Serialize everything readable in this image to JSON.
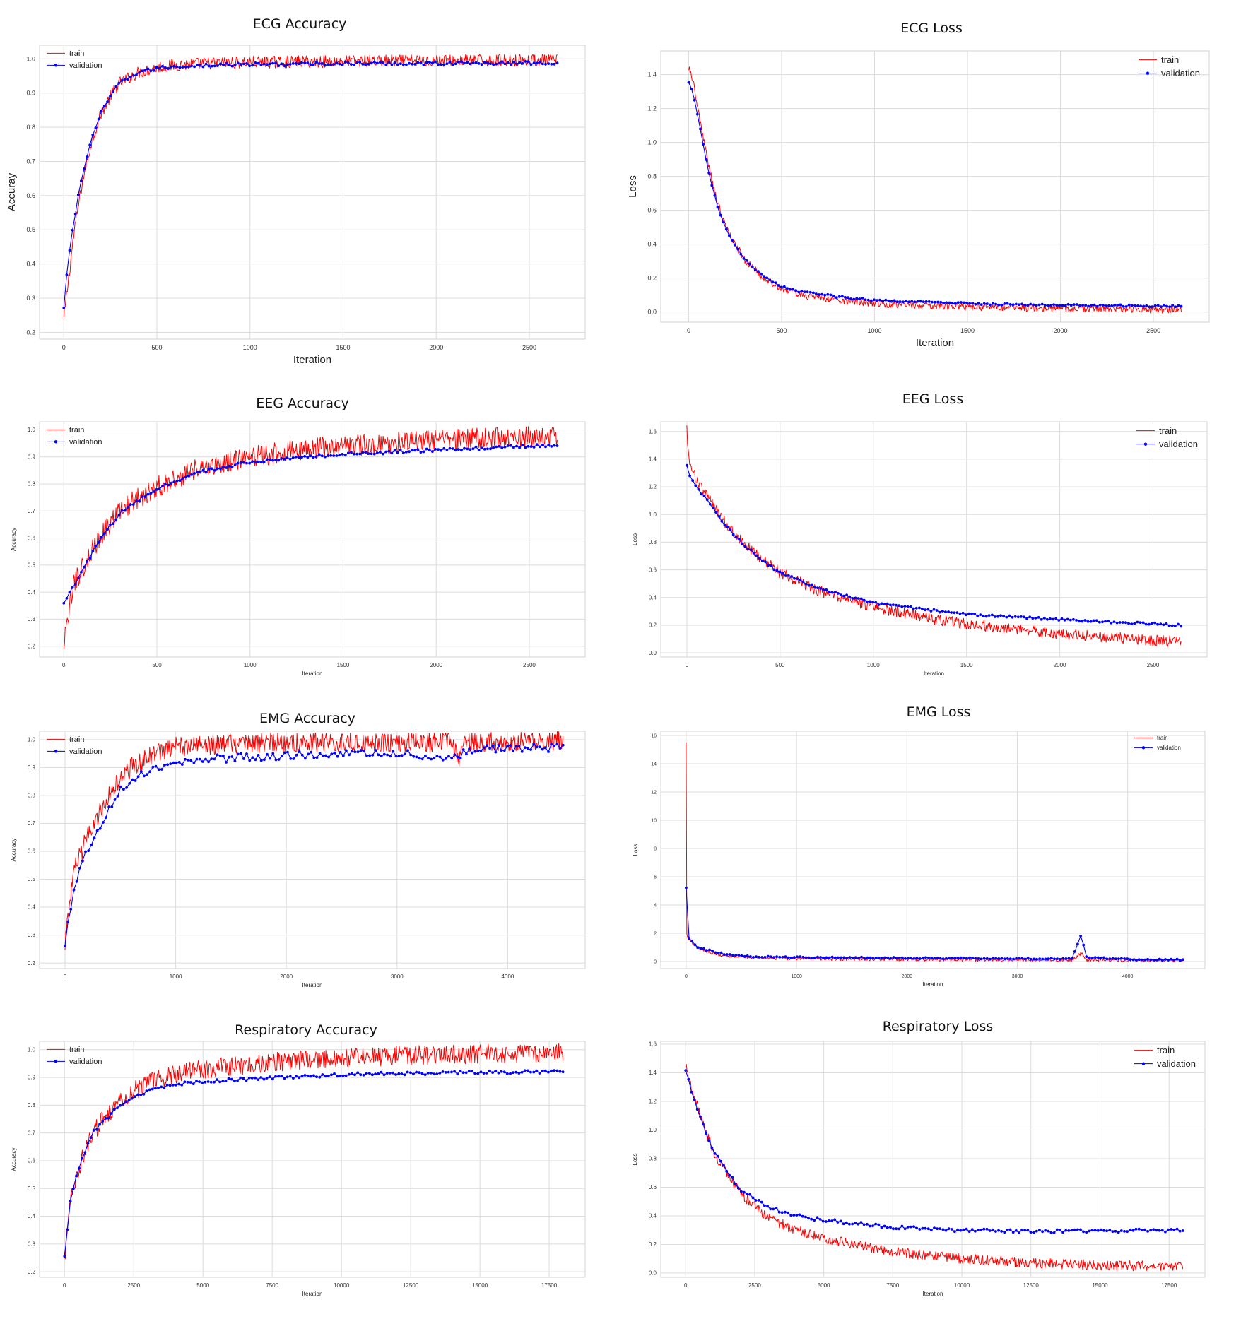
{
  "colors": {
    "train": "#ff0000",
    "validation": "#0000ff",
    "grid": "#dcdcdc",
    "frame": "#d3d3d3",
    "tick_text": "#333333",
    "title_text": "#111111"
  },
  "chart_data": [
    {
      "id": "ecg-accuracy",
      "type": "line",
      "title": "ECG Accuracy",
      "xlabel": "Iteration",
      "ylabel": "Accuray",
      "xlim": [
        -130,
        2800
      ],
      "ylim": [
        0.18,
        1.04
      ],
      "xticks": [
        0,
        500,
        1000,
        1500,
        2000,
        2500
      ],
      "xtick_labels": [
        "0",
        "500",
        "1000",
        "1500",
        "2000",
        "2500"
      ],
      "yticks": [
        0.2,
        0.3,
        0.4,
        0.5,
        0.6,
        0.7,
        0.8,
        0.9,
        1.0
      ],
      "ytick_labels": [
        "0.2",
        "0.3",
        "0.4",
        "0.5",
        "0.6",
        "0.7",
        "0.8",
        "0.9",
        "1.0"
      ],
      "grid": true,
      "legend_position": "top-left",
      "x_max": 2650,
      "series": [
        {
          "name": "train",
          "x": [
            0,
            25,
            50,
            75,
            100,
            150,
            200,
            250,
            300,
            400,
            500,
            600,
            800,
            1000,
            1500,
            2000,
            2500,
            2650
          ],
          "values": [
            0.24,
            0.35,
            0.47,
            0.56,
            0.64,
            0.76,
            0.84,
            0.89,
            0.93,
            0.96,
            0.975,
            0.982,
            0.988,
            0.99,
            0.993,
            0.995,
            0.996,
            0.996
          ],
          "noise": 0.018
        },
        {
          "name": "validation",
          "x": [
            0,
            25,
            50,
            75,
            100,
            150,
            200,
            250,
            300,
            400,
            500,
            600,
            800,
            1000,
            1500,
            2000,
            2500,
            2650
          ],
          "values": [
            0.27,
            0.42,
            0.51,
            0.59,
            0.66,
            0.77,
            0.84,
            0.89,
            0.93,
            0.96,
            0.972,
            0.978,
            0.982,
            0.984,
            0.986,
            0.987,
            0.988,
            0.988
          ],
          "noise": 0.005
        }
      ]
    },
    {
      "id": "ecg-loss",
      "type": "line",
      "title": "ECG Loss",
      "xlabel": "Iteration",
      "ylabel": "Loss",
      "xlim": [
        -150,
        2800
      ],
      "ylim": [
        -0.06,
        1.54
      ],
      "xticks": [
        0,
        500,
        1000,
        1500,
        2000,
        2500
      ],
      "xtick_labels": [
        "0",
        "500",
        "1000",
        "1500",
        "2000",
        "2500"
      ],
      "yticks": [
        0.0,
        0.2,
        0.4,
        0.6,
        0.8,
        1.0,
        1.2,
        1.4
      ],
      "ytick_labels": [
        "0.0",
        "0.2",
        "0.4",
        "0.6",
        "0.8",
        "1.0",
        "1.2",
        "1.4"
      ],
      "grid": true,
      "legend_position": "top-right",
      "x_max": 2650,
      "series": [
        {
          "name": "train",
          "x": [
            0,
            20,
            50,
            100,
            150,
            200,
            250,
            300,
            400,
            500,
            600,
            800,
            1000,
            1500,
            2000,
            2500,
            2650
          ],
          "values": [
            1.45,
            1.38,
            1.2,
            0.9,
            0.66,
            0.5,
            0.4,
            0.31,
            0.2,
            0.14,
            0.1,
            0.07,
            0.05,
            0.03,
            0.02,
            0.015,
            0.015
          ],
          "noise": 0.022
        },
        {
          "name": "validation",
          "x": [
            0,
            20,
            50,
            100,
            150,
            200,
            250,
            300,
            400,
            500,
            600,
            800,
            1000,
            1500,
            2000,
            2500,
            2650
          ],
          "values": [
            1.36,
            1.3,
            1.15,
            0.86,
            0.64,
            0.49,
            0.39,
            0.31,
            0.21,
            0.15,
            0.12,
            0.09,
            0.07,
            0.05,
            0.04,
            0.035,
            0.035
          ],
          "noise": 0.006
        }
      ]
    },
    {
      "id": "eeg-accuracy",
      "type": "line",
      "title": "EEG Accuracy",
      "xlabel": "Iteration",
      "ylabel": "Accuracy",
      "xlim": [
        -130,
        2800
      ],
      "ylim": [
        0.16,
        1.03
      ],
      "xticks": [
        0,
        500,
        1000,
        1500,
        2000,
        2500
      ],
      "xtick_labels": [
        "0",
        "500",
        "1000",
        "1500",
        "2000",
        "2500"
      ],
      "yticks": [
        0.2,
        0.3,
        0.4,
        0.5,
        0.6,
        0.7,
        0.8,
        0.9,
        1.0
      ],
      "ytick_labels": [
        "0.2",
        "0.3",
        "0.4",
        "0.5",
        "0.6",
        "0.7",
        "0.8",
        "0.9",
        "1.0"
      ],
      "grid": true,
      "legend_position": "top-left",
      "x_max": 2650,
      "series": [
        {
          "name": "train",
          "x": [
            0,
            50,
            100,
            200,
            300,
            400,
            500,
            700,
            1000,
            1300,
            1500,
            2000,
            2500,
            2650
          ],
          "values": [
            0.2,
            0.42,
            0.49,
            0.61,
            0.7,
            0.75,
            0.79,
            0.85,
            0.9,
            0.93,
            0.94,
            0.96,
            0.975,
            0.975
          ],
          "noise": 0.04
        },
        {
          "name": "validation",
          "x": [
            0,
            50,
            100,
            200,
            300,
            400,
            500,
            700,
            1000,
            1300,
            1500,
            2000,
            2500,
            2650
          ],
          "values": [
            0.36,
            0.42,
            0.48,
            0.6,
            0.69,
            0.74,
            0.78,
            0.84,
            0.88,
            0.9,
            0.91,
            0.925,
            0.94,
            0.945
          ],
          "noise": 0.006
        }
      ]
    },
    {
      "id": "eeg-loss",
      "type": "line",
      "title": "EEG Loss",
      "xlabel": "Iteration",
      "ylabel": "Loss",
      "xlim": [
        -140,
        2790
      ],
      "ylim": [
        -0.03,
        1.67
      ],
      "xticks": [
        0,
        500,
        1000,
        1500,
        2000,
        2500
      ],
      "xtick_labels": [
        "0",
        "500",
        "1000",
        "1500",
        "2000",
        "2500"
      ],
      "yticks": [
        0.0,
        0.2,
        0.4,
        0.6,
        0.8,
        1.0,
        1.2,
        1.4,
        1.6
      ],
      "ytick_labels": [
        "0.0",
        "0.2",
        "0.4",
        "0.6",
        "0.8",
        "1.0",
        "1.2",
        "1.4",
        "1.6"
      ],
      "grid": true,
      "legend_position": "top-right",
      "x_max": 2650,
      "series": [
        {
          "name": "train",
          "x": [
            0,
            10,
            50,
            100,
            200,
            300,
            400,
            500,
            700,
            1000,
            1300,
            1500,
            2000,
            2500,
            2650
          ],
          "values": [
            1.62,
            1.4,
            1.25,
            1.15,
            0.95,
            0.8,
            0.68,
            0.58,
            0.45,
            0.33,
            0.25,
            0.21,
            0.14,
            0.09,
            0.08
          ],
          "noise": 0.04
        },
        {
          "name": "validation",
          "x": [
            0,
            10,
            50,
            100,
            200,
            300,
            400,
            500,
            700,
            1000,
            1300,
            1500,
            2000,
            2500,
            2650
          ],
          "values": [
            1.35,
            1.3,
            1.2,
            1.12,
            0.93,
            0.79,
            0.67,
            0.58,
            0.47,
            0.36,
            0.31,
            0.28,
            0.24,
            0.21,
            0.2
          ],
          "noise": 0.008
        }
      ]
    },
    {
      "id": "emg-accuracy",
      "type": "line",
      "title": "EMG Accuracy",
      "xlabel": "Iteration",
      "ylabel": "Accuracy",
      "xlim": [
        -230,
        4700
      ],
      "ylim": [
        0.18,
        1.03
      ],
      "xticks": [
        0,
        1000,
        2000,
        3000,
        4000
      ],
      "xtick_labels": [
        "0",
        "1000",
        "2000",
        "3000",
        "4000"
      ],
      "yticks": [
        0.2,
        0.3,
        0.4,
        0.5,
        0.6,
        0.7,
        0.8,
        0.9,
        1.0
      ],
      "ytick_labels": [
        "0.2",
        "0.3",
        "0.4",
        "0.5",
        "0.6",
        "0.7",
        "0.8",
        "0.9",
        "1.0"
      ],
      "grid": true,
      "legend_position": "top-left",
      "x_max": 4500,
      "series": [
        {
          "name": "train",
          "x": [
            0,
            50,
            100,
            200,
            300,
            400,
            500,
            600,
            800,
            1000,
            1500,
            2000,
            3000,
            3500,
            3560,
            3600,
            4000,
            4500
          ],
          "values": [
            0.27,
            0.45,
            0.55,
            0.65,
            0.73,
            0.8,
            0.86,
            0.9,
            0.95,
            0.975,
            0.985,
            0.99,
            0.99,
            0.99,
            0.91,
            0.99,
            0.995,
            0.997
          ],
          "noise": 0.035
        },
        {
          "name": "validation",
          "x": [
            0,
            50,
            100,
            200,
            300,
            400,
            500,
            600,
            800,
            1000,
            1500,
            2000,
            2500,
            3000,
            3500,
            3600,
            3700,
            4000,
            4500
          ],
          "values": [
            0.27,
            0.4,
            0.5,
            0.6,
            0.68,
            0.75,
            0.82,
            0.86,
            0.9,
            0.92,
            0.935,
            0.94,
            0.95,
            0.95,
            0.93,
            0.95,
            0.965,
            0.97,
            0.97
          ],
          "noise": 0.015
        }
      ]
    },
    {
      "id": "emg-loss",
      "type": "line",
      "title": "EMG Loss",
      "xlabel": "Iteration",
      "ylabel": "Loss",
      "xlim": [
        -230,
        4700
      ],
      "ylim": [
        -0.5,
        16.3
      ],
      "xticks": [
        0,
        1000,
        2000,
        3000,
        4000
      ],
      "xtick_labels": [
        "0",
        "1000",
        "2000",
        "3000",
        "4000"
      ],
      "yticks": [
        0,
        2,
        4,
        6,
        8,
        10,
        12,
        14,
        16
      ],
      "ytick_labels": [
        "0",
        "2",
        "4",
        "6",
        "8",
        "10",
        "12",
        "14",
        "16"
      ],
      "grid": true,
      "legend_position": "top-right",
      "x_max": 4500,
      "series": [
        {
          "name": "train",
          "x": [
            0,
            5,
            30,
            100,
            200,
            300,
            400,
            600,
            1000,
            2000,
            3000,
            3500,
            3580,
            3620,
            4000,
            4500
          ],
          "values": [
            15.5,
            2.0,
            1.5,
            1.0,
            0.7,
            0.5,
            0.4,
            0.3,
            0.2,
            0.15,
            0.12,
            0.12,
            0.6,
            0.12,
            0.1,
            0.08
          ],
          "noise": 0.12
        },
        {
          "name": "validation",
          "x": [
            0,
            20,
            100,
            200,
            300,
            400,
            600,
            1000,
            2000,
            3000,
            3500,
            3580,
            3620,
            4000,
            4500
          ],
          "values": [
            5.2,
            1.7,
            1.0,
            0.8,
            0.6,
            0.45,
            0.35,
            0.3,
            0.25,
            0.2,
            0.2,
            2.0,
            0.3,
            0.15,
            0.12
          ],
          "noise": 0.05
        }
      ]
    },
    {
      "id": "respiratory-accuracy",
      "type": "line",
      "title": "Respiratory Accuracy",
      "xlabel": "Iteration",
      "ylabel": "Accuracy",
      "xlim": [
        -900,
        18800
      ],
      "ylim": [
        0.18,
        1.03
      ],
      "xticks": [
        0,
        2500,
        5000,
        7500,
        10000,
        12500,
        15000,
        17500
      ],
      "xtick_labels": [
        "0",
        "2500",
        "5000",
        "7500",
        "10000",
        "12500",
        "15000",
        "17500"
      ],
      "yticks": [
        0.2,
        0.3,
        0.4,
        0.5,
        0.6,
        0.7,
        0.8,
        0.9,
        1.0
      ],
      "ytick_labels": [
        "0.2",
        "0.3",
        "0.4",
        "0.5",
        "0.6",
        "0.7",
        "0.8",
        "0.9",
        "1.0"
      ],
      "grid": true,
      "legend_position": "top-left",
      "x_max": 18000,
      "series": [
        {
          "name": "train",
          "x": [
            0,
            200,
            500,
            1000,
            2000,
            3000,
            4000,
            5000,
            7500,
            10000,
            12500,
            15000,
            18000
          ],
          "values": [
            0.24,
            0.45,
            0.57,
            0.7,
            0.82,
            0.88,
            0.91,
            0.93,
            0.955,
            0.97,
            0.98,
            0.985,
            0.99
          ],
          "noise": 0.035
        },
        {
          "name": "validation",
          "x": [
            0,
            200,
            500,
            1000,
            2000,
            3000,
            4000,
            5000,
            7500,
            10000,
            12500,
            15000,
            18000
          ],
          "values": [
            0.25,
            0.45,
            0.57,
            0.7,
            0.8,
            0.85,
            0.875,
            0.885,
            0.9,
            0.91,
            0.915,
            0.918,
            0.92
          ],
          "noise": 0.006
        }
      ]
    },
    {
      "id": "respiratory-loss",
      "type": "line",
      "title": "Respiratory Loss",
      "xlabel": "Iteration",
      "ylabel": "Loss",
      "xlim": [
        -900,
        18800
      ],
      "ylim": [
        -0.03,
        1.62
      ],
      "xticks": [
        0,
        2500,
        5000,
        7500,
        10000,
        12500,
        15000,
        17500
      ],
      "xtick_labels": [
        "0",
        "2500",
        "5000",
        "7500",
        "10000",
        "12500",
        "15000",
        "17500"
      ],
      "yticks": [
        0.0,
        0.2,
        0.4,
        0.6,
        0.8,
        1.0,
        1.2,
        1.4,
        1.6
      ],
      "ytick_labels": [
        "0.0",
        "0.2",
        "0.4",
        "0.6",
        "0.8",
        "1.0",
        "1.2",
        "1.4",
        "1.6"
      ],
      "grid": true,
      "legend_position": "top-right",
      "x_max": 18000,
      "series": [
        {
          "name": "train",
          "x": [
            0,
            200,
            500,
            1000,
            2000,
            3000,
            4000,
            5000,
            7500,
            10000,
            12500,
            15000,
            18000
          ],
          "values": [
            1.45,
            1.3,
            1.12,
            0.85,
            0.55,
            0.38,
            0.3,
            0.24,
            0.15,
            0.1,
            0.07,
            0.055,
            0.045
          ],
          "noise": 0.035
        },
        {
          "name": "validation",
          "x": [
            0,
            200,
            500,
            1000,
            2000,
            3000,
            4000,
            5000,
            7500,
            10000,
            12500,
            15000,
            18000
          ],
          "values": [
            1.42,
            1.28,
            1.1,
            0.85,
            0.58,
            0.46,
            0.4,
            0.37,
            0.32,
            0.3,
            0.29,
            0.295,
            0.3
          ],
          "noise": 0.012
        }
      ]
    }
  ]
}
